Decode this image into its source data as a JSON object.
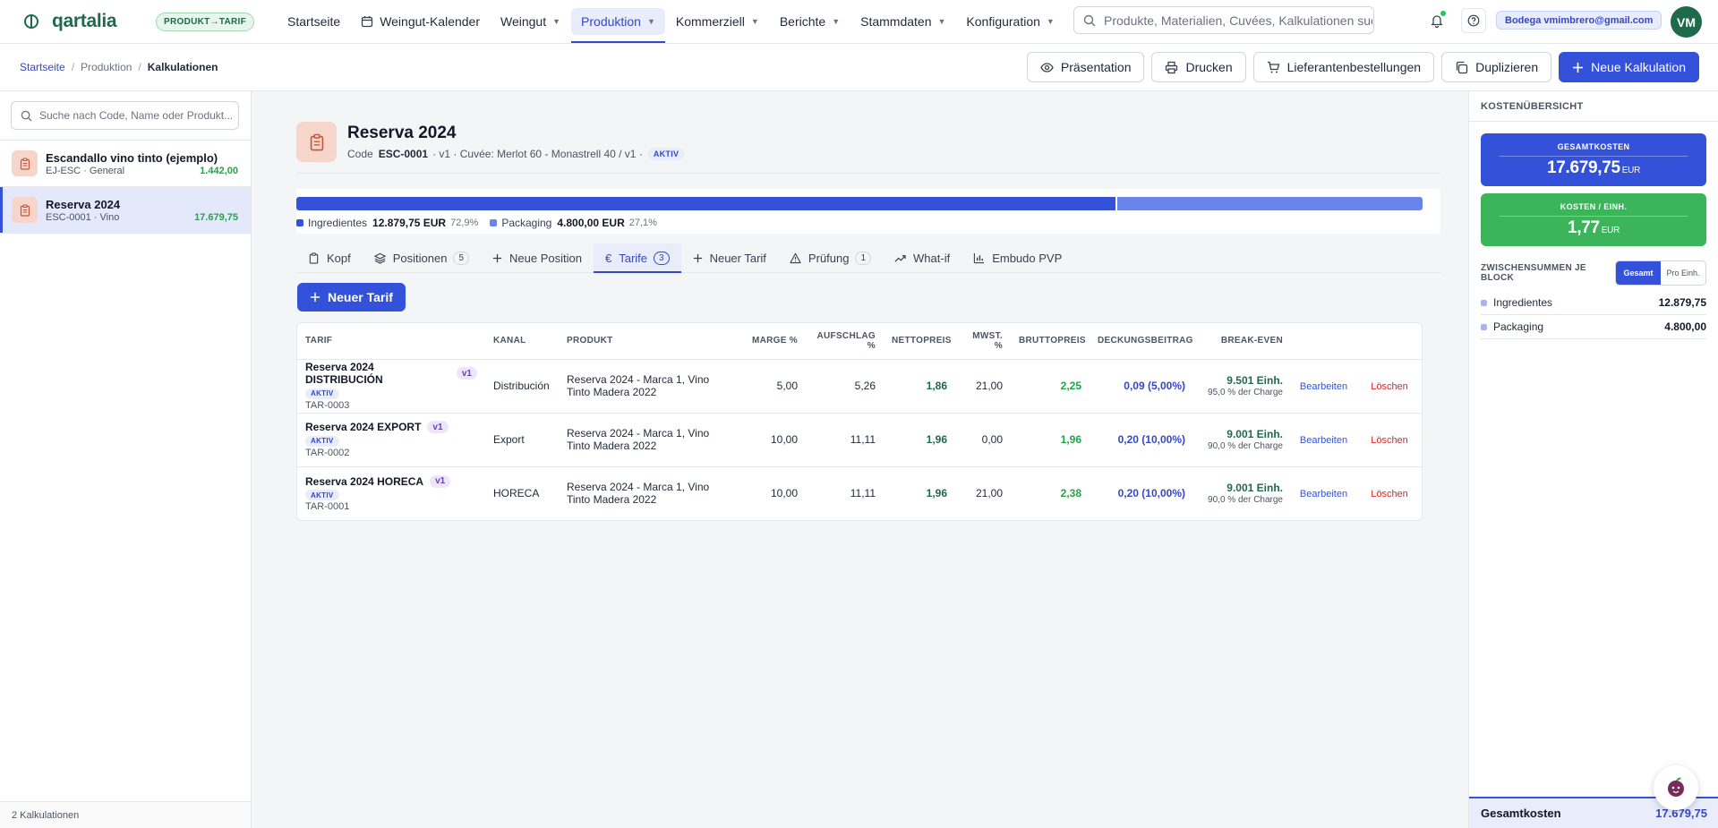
{
  "app": {
    "name": "qartalia",
    "mode_badge": "PRODUKT→TARIF"
  },
  "nav": {
    "items": [
      {
        "label": "Startseite"
      },
      {
        "label": "Weingut-Kalender"
      },
      {
        "label": "Weingut"
      },
      {
        "label": "Produktion"
      },
      {
        "label": "Kommerziell"
      },
      {
        "label": "Berichte"
      },
      {
        "label": "Stammdaten"
      },
      {
        "label": "Konfiguration"
      }
    ],
    "active": "Produktion",
    "search_placeholder": "Produkte, Materialien, Cuvées, Kalkulationen suchen",
    "user": "Bodega vmimbrero@gmail.com",
    "avatar": "VM"
  },
  "breadcrumb": {
    "home": "Startseite",
    "section": "Produktion",
    "current": "Kalkulationen"
  },
  "actions": {
    "presentation": "Präsentation",
    "print": "Drucken",
    "supplier_orders": "Lieferantenbestellungen",
    "duplicate": "Duplizieren",
    "new": "Neue Kalkulation"
  },
  "sidebar": {
    "search_placeholder": "Suche nach Code, Name oder Produkt...",
    "items": [
      {
        "name": "Escandallo vino tinto (ejemplo)",
        "meta": "EJ-ESC · General",
        "amount": "1.442,00"
      },
      {
        "name": "Reserva 2024",
        "meta": "ESC-0001 · Vino",
        "amount": "17.679,75"
      }
    ],
    "footer": "2 Kalkulationen"
  },
  "calc": {
    "title": "Reserva 2024",
    "code_label": "Code",
    "code": "ESC-0001",
    "meta": "· v1 · Cuvée: Merlot 60 - Monastrell 40 / v1 ·",
    "status": "AKTIV"
  },
  "cost_split": {
    "ingredients_label": "Ingredientes",
    "ingredients_value": "12.879,75 EUR",
    "ingredients_pct": "72,9%",
    "ingredients_share": 0.729,
    "packaging_label": "Packaging",
    "packaging_value": "4.800,00 EUR",
    "packaging_pct": "27,1%",
    "packaging_share": 0.271,
    "colors": {
      "ingredients": "#3452d9",
      "packaging": "#6a84ea"
    }
  },
  "tabs": [
    {
      "label": "Kopf"
    },
    {
      "label": "Positionen",
      "count": "5"
    },
    {
      "label": "Neue Position"
    },
    {
      "label": "Tarife",
      "count": "3"
    },
    {
      "label": "Neuer Tarif"
    },
    {
      "label": "Prüfung",
      "count": "1"
    },
    {
      "label": "What-if"
    },
    {
      "label": "Embudo PVP"
    }
  ],
  "new_tarif_button": "Neuer Tarif",
  "table": {
    "headers": {
      "tarif": "TARIF",
      "kanal": "KANAL",
      "produkt": "PRODUKT",
      "marge": "MARGE %",
      "aufschlag": "AUFSCHLAG %",
      "netto": "NETTOPREIS",
      "mwst": "MWST. %",
      "brutto": "BRUTTOPREIS",
      "db": "DECKUNGSBEITRAG",
      "be": "BREAK-EVEN"
    },
    "edit_label": "Bearbeiten",
    "delete_label": "Löschen",
    "rows": [
      {
        "name": "Reserva 2024 DISTRIBUCIÓN",
        "version": "v1",
        "status": "AKTIV",
        "code": "TAR-0003",
        "kanal": "Distribución",
        "produkt": "Reserva 2024 - Marca 1, Vino Tinto Madera 2022",
        "marge": "5,00",
        "aufschlag": "5,26",
        "netto": "1,86",
        "mwst": "21,00",
        "brutto": "2,25",
        "db": "0,09 (5,00%)",
        "be": "9.501 Einh.",
        "be_sub": "95,0 % der Charge"
      },
      {
        "name": "Reserva 2024 EXPORT",
        "version": "v1",
        "status": "AKTIV",
        "code": "TAR-0002",
        "kanal": "Export",
        "produkt": "Reserva 2024 - Marca 1, Vino Tinto Madera 2022",
        "marge": "10,00",
        "aufschlag": "11,11",
        "netto": "1,96",
        "mwst": "0,00",
        "brutto": "1,96",
        "db": "0,20 (10,00%)",
        "be": "9.001 Einh.",
        "be_sub": "90,0 % der Charge"
      },
      {
        "name": "Reserva 2024 HORECA",
        "version": "v1",
        "status": "AKTIV",
        "code": "TAR-0001",
        "kanal": "HORECA",
        "produkt": "Reserva 2024 - Marca 1, Vino Tinto Madera 2022",
        "marge": "10,00",
        "aufschlag": "11,11",
        "netto": "1,96",
        "mwst": "21,00",
        "brutto": "2,38",
        "db": "0,20 (10,00%)",
        "be": "9.001 Einh.",
        "be_sub": "90,0 % der Charge"
      }
    ]
  },
  "overview": {
    "title": "KOSTENÜBERSICHT",
    "total_label": "GESAMTKOSTEN",
    "total_value": "17.679,75",
    "currency": "EUR",
    "unit_label": "KOSTEN / EINH.",
    "unit_value": "1,77",
    "subtotals_title": "ZWISCHENSUMMEN JE BLOCK",
    "toggle_total": "Gesamt",
    "toggle_unit": "Pro Einh.",
    "rows": [
      {
        "label": "Ingredientes",
        "value": "12.879,75"
      },
      {
        "label": "Packaging",
        "value": "4.800,00"
      }
    ],
    "footer_label": "Gesamtkosten",
    "footer_value": "17.679,75"
  }
}
